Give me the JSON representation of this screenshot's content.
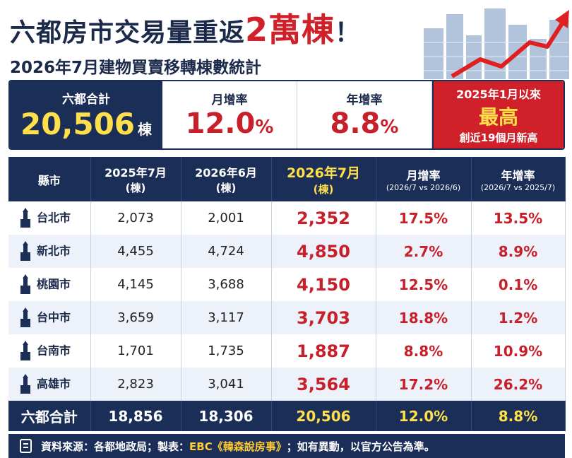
{
  "header": {
    "title_a": "六都房市交易量重返",
    "title_b": "2萬棟",
    "title_c": "！",
    "subtitle": "2026年7月建物買賣移轉棟數統計"
  },
  "summary": [
    {
      "label": "六都合計",
      "value": "20,506",
      "unit": "棟"
    },
    {
      "label": "月增率",
      "value": "12.0",
      "unit": "%"
    },
    {
      "label": "年增率",
      "value": "8.8",
      "unit": "%"
    }
  ],
  "highlight": {
    "line1": "2025年1月以來",
    "line2": "最高",
    "line3": "創近19個月新高"
  },
  "table": {
    "header": [
      {
        "title": "縣市"
      },
      {
        "title": "2025年7月",
        "sub": "(棟)"
      },
      {
        "title": "2026年6月",
        "sub": "(棟)"
      },
      {
        "title": "2026年7月",
        "sub": "(棟)"
      },
      {
        "title": "月增率",
        "sub": "(2026/7 vs 2026/6)"
      },
      {
        "title": "年增率",
        "sub": "(2026/7 vs 2025/7)"
      }
    ],
    "rows": [
      {
        "city": "台北市",
        "cells": [
          "2,073",
          "2,001",
          "2,352",
          "17.5%",
          "13.5%"
        ]
      },
      {
        "city": "新北市",
        "cells": [
          "4,455",
          "4,724",
          "4,850",
          "2.7%",
          "8.9%"
        ]
      },
      {
        "city": "桃園市",
        "cells": [
          "4,145",
          "3,688",
          "4,150",
          "12.5%",
          "0.1%"
        ]
      },
      {
        "city": "台中市",
        "cells": [
          "3,659",
          "3,117",
          "3,703",
          "18.8%",
          "1.2%"
        ]
      },
      {
        "city": "台南市",
        "cells": [
          "1,701",
          "1,735",
          "1,887",
          "8.8%",
          "10.9%"
        ]
      },
      {
        "city": "高雄市",
        "cells": [
          "2,823",
          "3,041",
          "3,564",
          "17.2%",
          "26.2%"
        ]
      }
    ],
    "total": {
      "label": "六都合計",
      "cells": [
        "18,856",
        "18,306",
        "20,506",
        "12.0%",
        "8.8%"
      ]
    }
  },
  "footer": {
    "source_a": "資料來源：各都地政局；製表：",
    "source_b": "EBC《韓森說房事》",
    "source_c": "；如有異動，以官方公告為準。"
  }
}
